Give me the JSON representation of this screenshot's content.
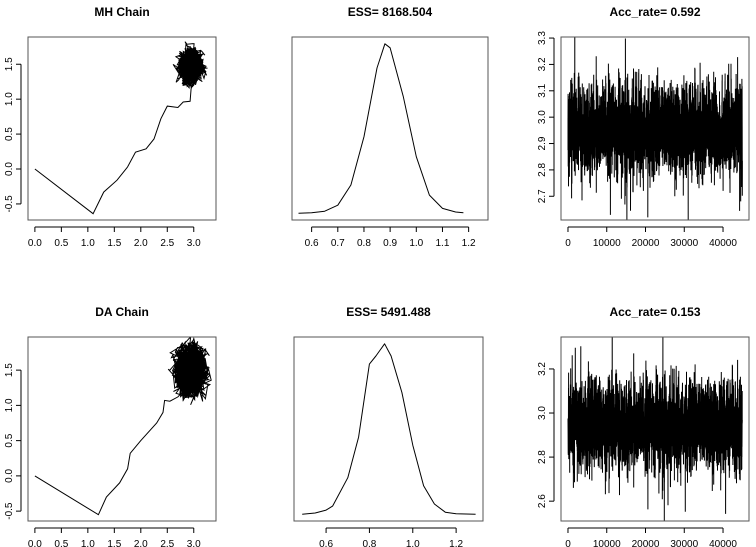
{
  "chart_data": [
    {
      "type": "line",
      "title": "MH Chain",
      "xticks": [
        "0.0",
        "0.5",
        "1.0",
        "1.5",
        "2.0",
        "2.5",
        "3.0"
      ],
      "yticks": [
        "-0.5",
        "0.0",
        "0.5",
        "1.0",
        "1.5"
      ],
      "xlim": [
        -0.13,
        3.42
      ],
      "ylim": [
        -0.73,
        1.89
      ],
      "path": [
        [
          0,
          0
        ],
        [
          1.1,
          -0.64
        ],
        [
          1.3,
          -0.33
        ],
        [
          1.55,
          -0.16
        ],
        [
          1.75,
          0.03
        ],
        [
          1.9,
          0.24
        ],
        [
          2.1,
          0.29
        ],
        [
          2.25,
          0.43
        ],
        [
          2.38,
          0.72
        ],
        [
          2.5,
          0.9
        ],
        [
          2.7,
          0.88
        ],
        [
          2.8,
          0.96
        ],
        [
          2.93,
          0.97
        ],
        [
          2.95,
          1.15
        ],
        [
          3.0,
          1.25
        ]
      ],
      "cluster": {
        "center": [
          2.95,
          1.48
        ],
        "sd": [
          0.09,
          0.1
        ],
        "n": 2500
      }
    },
    {
      "type": "line",
      "title": "ESS= 8168.504",
      "xticks": [
        "0.6",
        "0.7",
        "0.8",
        "0.9",
        "1.0",
        "1.1",
        "1.2"
      ],
      "xlim": [
        0.525,
        1.274
      ],
      "x": [
        0.55,
        0.6,
        0.65,
        0.7,
        0.75,
        0.8,
        0.85,
        0.88,
        0.9,
        0.95,
        1.0,
        1.05,
        1.1,
        1.15,
        1.18
      ],
      "y": [
        0.0,
        0.01,
        0.05,
        0.2,
        0.7,
        1.9,
        3.6,
        4.2,
        4.1,
        2.9,
        1.4,
        0.45,
        0.12,
        0.03,
        0.01
      ]
    },
    {
      "type": "line",
      "title": "Acc_rate= 0.592",
      "xticks": [
        "0",
        "10000",
        "20000",
        "30000",
        "40000"
      ],
      "yticks": [
        "2.7",
        "2.8",
        "2.9",
        "3.0",
        "3.1",
        "3.2",
        "3.3"
      ],
      "xlim": [
        -1800,
        46700
      ],
      "ylim": [
        2.61,
        3.304
      ],
      "n": 45000,
      "mean": 2.95,
      "sd": 0.085
    },
    {
      "type": "line",
      "title": "DA Chain",
      "xticks": [
        "0.0",
        "0.5",
        "1.0",
        "1.5",
        "2.0",
        "2.5",
        "3.0"
      ],
      "yticks": [
        "-0.5",
        "0.0",
        "0.5",
        "1.0",
        "1.5"
      ],
      "xlim": [
        -0.13,
        3.42
      ],
      "ylim": [
        -0.64,
        1.97
      ],
      "path": [
        [
          0,
          0
        ],
        [
          1.2,
          -0.55
        ],
        [
          1.35,
          -0.3
        ],
        [
          1.6,
          -0.1
        ],
        [
          1.75,
          0.1
        ],
        [
          1.8,
          0.32
        ],
        [
          2.0,
          0.5
        ],
        [
          2.3,
          0.75
        ],
        [
          2.42,
          0.9
        ],
        [
          2.45,
          1.07
        ],
        [
          2.55,
          1.06
        ],
        [
          2.7,
          1.12
        ],
        [
          2.8,
          1.2
        ]
      ],
      "cluster": {
        "center": [
          2.95,
          1.48
        ],
        "sd": [
          0.12,
          0.15
        ],
        "n": 2500
      }
    },
    {
      "type": "line",
      "title": "ESS= 5491.488",
      "xticks": [
        "0.6",
        "0.8",
        "1.0",
        "1.2"
      ],
      "xlim": [
        0.452,
        1.324
      ],
      "x": [
        0.49,
        0.55,
        0.6,
        0.63,
        0.7,
        0.75,
        0.8,
        0.83,
        0.87,
        0.9,
        0.95,
        1.0,
        1.05,
        1.1,
        1.15,
        1.2,
        1.29
      ],
      "y": [
        0.0,
        0.03,
        0.1,
        0.2,
        0.9,
        1.9,
        3.7,
        3.9,
        4.2,
        3.9,
        3.0,
        1.7,
        0.7,
        0.25,
        0.05,
        0.01,
        0.0
      ]
    },
    {
      "type": "line",
      "title": "Acc_rate= 0.153",
      "xticks": [
        "0",
        "10000",
        "20000",
        "30000",
        "40000"
      ],
      "yticks": [
        "2.6",
        "2.8",
        "3.0",
        "3.2"
      ],
      "xlim": [
        -1800,
        46700
      ],
      "ylim": [
        2.51,
        3.345
      ],
      "n": 45000,
      "mean": 2.94,
      "sd": 0.1
    }
  ]
}
